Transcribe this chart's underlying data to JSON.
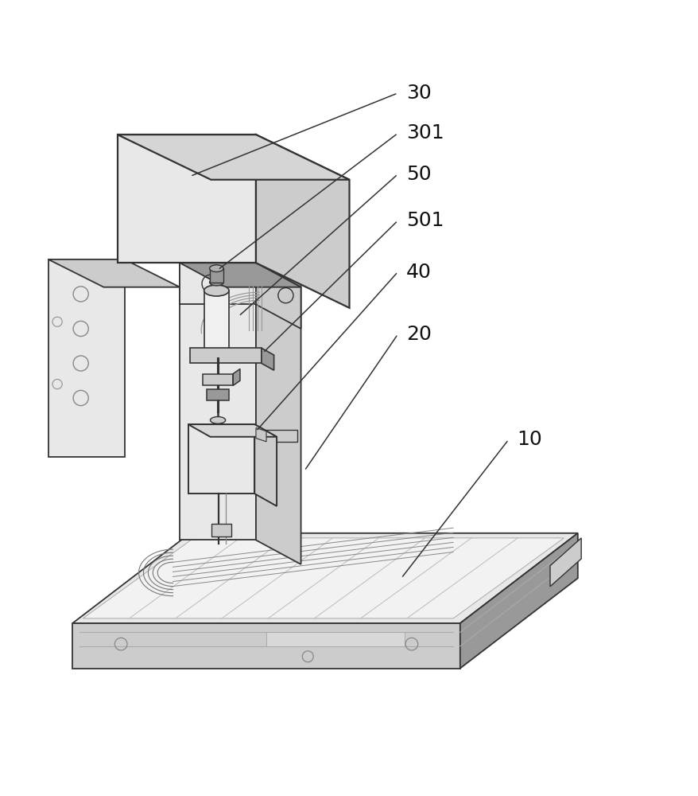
{
  "background_color": "#ffffff",
  "line_color": "#333333",
  "shadow_color": "#aaaaaa",
  "light_fill": "#e8e8e8",
  "mid_fill": "#cccccc",
  "dark_fill": "#999999",
  "font_size": 18
}
